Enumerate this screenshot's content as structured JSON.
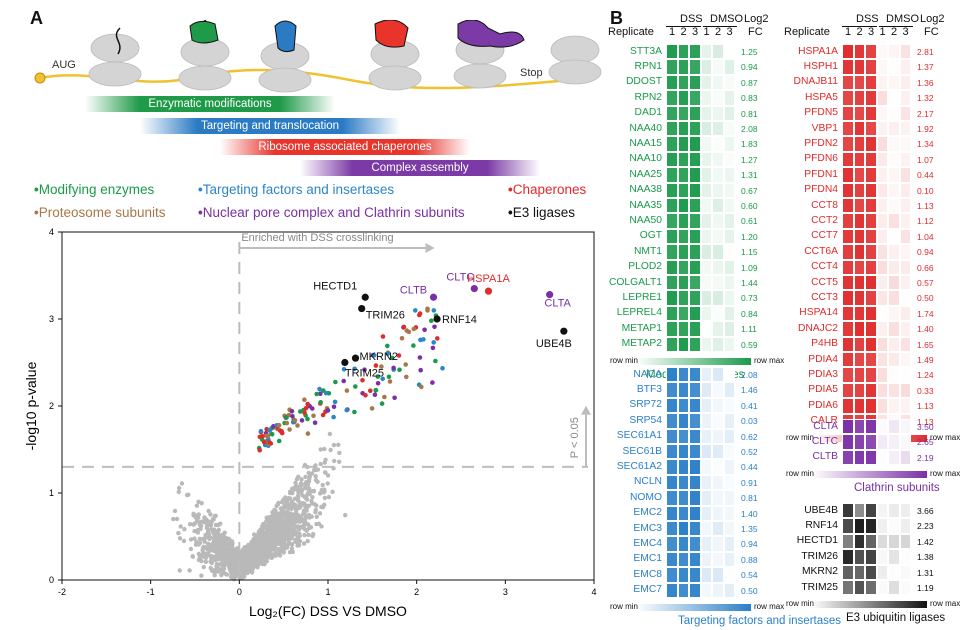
{
  "panels": {
    "a": "A",
    "b": "B"
  },
  "ribosome": {
    "aug": "AUG",
    "stop": "Stop"
  },
  "bars": [
    {
      "label": "Enzymatic modifications",
      "color": "#1e9a48"
    },
    {
      "label": "Targeting and translocation",
      "color": "#2b7bc4"
    },
    {
      "label": "Ribosome associated chaperones",
      "color": "#e8342b"
    },
    {
      "label": "Complex assembly",
      "color": "#7b3aa5"
    }
  ],
  "legend": [
    {
      "label": "Modifying enzymes",
      "color": "#1a9a4a"
    },
    {
      "label": "Targeting factors and insertases",
      "color": "#2a86c8"
    },
    {
      "label": "Chaperones",
      "color": "#e02b2b"
    },
    {
      "label": "Proteosome subunits",
      "color": "#a8784a"
    },
    {
      "label": "Nuclear pore complex and Clathrin subunits",
      "color": "#7a2fa6"
    },
    {
      "label": "E3 ligases",
      "color": "#111111"
    }
  ],
  "chart_data": {
    "type": "scatter",
    "xlabel": "Log₂(FC) DSS VS DMSO",
    "ylabel": "-log10 p-value",
    "xlim": [
      -2,
      4
    ],
    "ylim": [
      0,
      4
    ],
    "xticks": [
      "-2",
      "-1",
      "0",
      "1",
      "2",
      "3",
      "4"
    ],
    "yticks": [
      "0",
      "1",
      "2",
      "3",
      "4"
    ],
    "threshold_y": 1.3,
    "threshold_x": 0,
    "annotations": {
      "enriched": "Enriched with DSS crosslinking",
      "pval": "P < 0.05"
    },
    "labeled_points": [
      {
        "name": "HSPA1A",
        "x": 2.81,
        "y": 3.32,
        "color": "#e02b2b"
      },
      {
        "name": "CLTC",
        "x": 2.65,
        "y": 3.35,
        "color": "#7a2fa6"
      },
      {
        "name": "CLTB",
        "x": 2.19,
        "y": 3.25,
        "color": "#7a2fa6"
      },
      {
        "name": "CLTA",
        "x": 3.5,
        "y": 3.28,
        "color": "#7a2fa6"
      },
      {
        "name": "UBE4B",
        "x": 3.66,
        "y": 2.86,
        "color": "#111111"
      },
      {
        "name": "RNF14",
        "x": 2.23,
        "y": 3.0,
        "color": "#111111"
      },
      {
        "name": "HECTD1",
        "x": 1.42,
        "y": 3.25,
        "color": "#111111"
      },
      {
        "name": "TRIM26",
        "x": 1.38,
        "y": 3.12,
        "color": "#111111"
      },
      {
        "name": "MKRN2",
        "x": 1.31,
        "y": 2.55,
        "color": "#111111"
      },
      {
        "name": "TRIM25",
        "x": 1.19,
        "y": 2.5,
        "color": "#111111"
      }
    ]
  },
  "heatmaps": {
    "replicate_label": "Replicate",
    "dss": "DSS",
    "dmso": "DMSO",
    "log2": "Log2",
    "fc": "FC",
    "reps": [
      "1",
      "2",
      "3",
      "1",
      "2",
      "3"
    ],
    "row_min": "row min",
    "row_max": "row max",
    "modifying": {
      "title": "Modifying enzymes",
      "color": "#1a9a4a",
      "genes": [
        "STT3A",
        "RPN1",
        "DDOST",
        "RPN2",
        "DAD1",
        "NAA40",
        "NAA15",
        "NAA10",
        "NAA25",
        "NAA38",
        "NAA35",
        "NAA50",
        "OGT",
        "NMT1",
        "PLOD2",
        "COLGALT1",
        "LEPRE1",
        "LEPREL4",
        "METAP1",
        "METAP2"
      ],
      "fc": [
        "1.25",
        "0.94",
        "0.87",
        "0.83",
        "0.81",
        "2.08",
        "1.83",
        "1.27",
        "1.31",
        "0.67",
        "0.60",
        "0.61",
        "1.20",
        "1.15",
        "1.09",
        "1.44",
        "0.73",
        "0.84",
        "1.11",
        "0.59"
      ]
    },
    "targeting": {
      "title": "Targeting factors and insertases",
      "color": "#2a7fc8",
      "genes": [
        "NACA",
        "BTF3",
        "SRP72",
        "SRP54",
        "SEC61A1",
        "SEC61B",
        "SEC61A2",
        "NCLN",
        "NOMO",
        "EMC2",
        "EMC3",
        "EMC4",
        "EMC1",
        "EMC8",
        "EMC7"
      ],
      "fc": [
        "2.08",
        "1.46",
        "0.41",
        "0.03",
        "0.62",
        "0.52",
        "0.44",
        "0.91",
        "0.81",
        "1.40",
        "1.35",
        "0.94",
        "0.88",
        "0.54",
        "0.50"
      ]
    },
    "chaperones": {
      "title": "Chaperones",
      "color": "#e02b2b",
      "genes": [
        "HSPA1A",
        "HSPH1",
        "DNAJB11",
        "HSPA5",
        "PFDN5",
        "VBP1",
        "PFDN2",
        "PFDN6",
        "PFDN1",
        "PFDN4",
        "CCT8",
        "CCT2",
        "CCT7",
        "CCT6A",
        "CCT4",
        "CCT5",
        "CCT3",
        "HSPA14",
        "DNAJC2",
        "P4HB",
        "PDIA4",
        "PDIA3",
        "PDIA5",
        "PDIA6",
        "CALR"
      ],
      "fc": [
        "2.81",
        "1.37",
        "1.36",
        "1.32",
        "2.17",
        "1.92",
        "1.34",
        "1.07",
        "0.44",
        "0.10",
        "1.13",
        "1.12",
        "1.04",
        "0.94",
        "0.66",
        "0.57",
        "0.50",
        "1.74",
        "1.40",
        "1.65",
        "1.49",
        "1.24",
        "0.33",
        "1.13",
        "1.13"
      ]
    },
    "clathrin": {
      "title": "Clathrin subunits",
      "color": "#7a2fa6",
      "genes": [
        "CLTA",
        "CLTC",
        "CLTB"
      ],
      "fc": [
        "3.50",
        "2.65",
        "2.19"
      ]
    },
    "e3": {
      "title": "E3 ubiquitin ligases",
      "color": "#111111",
      "genes": [
        "UBE4B",
        "RNF14",
        "HECTD1",
        "TRIM26",
        "MKRN2",
        "TRIM25"
      ],
      "fc": [
        "3.66",
        "2.23",
        "1.42",
        "1.38",
        "1.31",
        "1.19"
      ]
    }
  }
}
